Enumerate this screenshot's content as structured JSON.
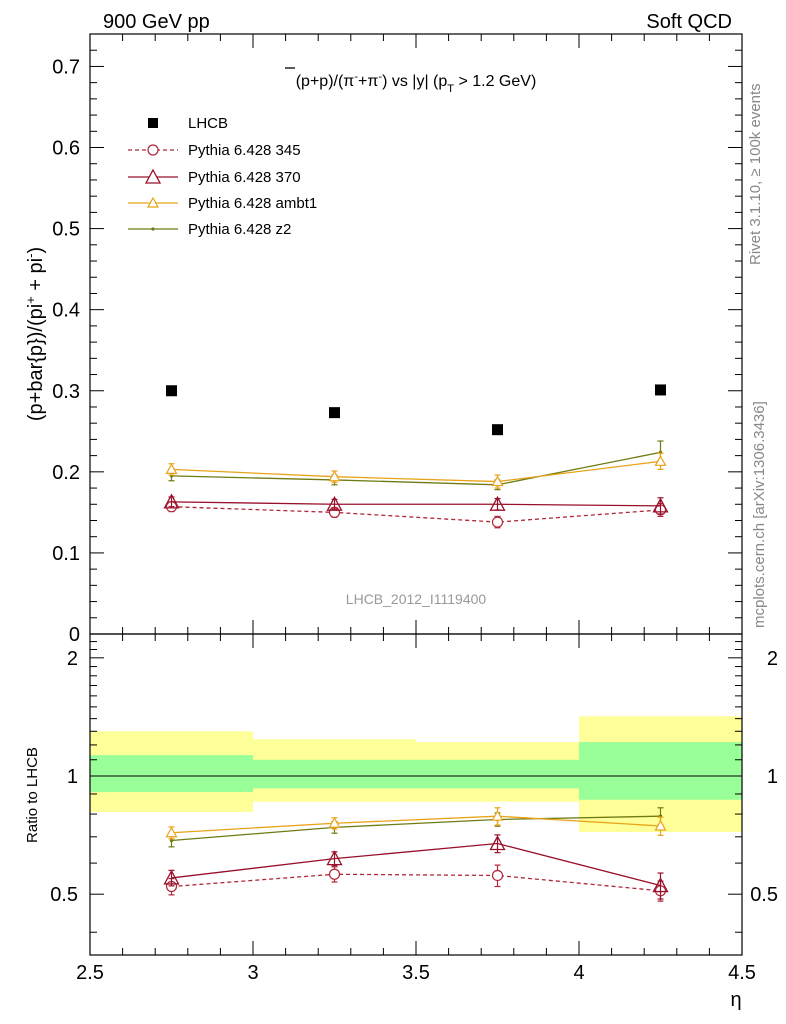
{
  "header": {
    "left": "900 GeV pp",
    "right": "Soft QCD"
  },
  "side": {
    "rivet": "Rivet 3.1.10, ≥ 100k events",
    "mcplots": "mcplots.cern.ch [arXiv:1306.3436]"
  },
  "colors": {
    "data": "#000000",
    "p345": "#b0283a",
    "p370": "#99102a",
    "ambt1": "#e8a318",
    "z2": "#6f7a12",
    "band_inner": "#99ff99",
    "band_outer": "#ffff99"
  },
  "chart_data": [
    {
      "type": "scatter",
      "title": "(p̅+p)/(π⁻+π⁺) vs |y| (p_T > 1.2 GeV)",
      "title_parts": {
        "main": "(p+p)/(π",
        "minus": "-",
        "plus_pi": "+π",
        "plus": "-",
        "vs": ") vs |y| (p",
        "sub": "T",
        "tail": " > 1.2 GeV)"
      },
      "ylabel": "(p+bar{p})/(pi⁺ + pi⁻)",
      "ylabel_parts": {
        "a": "(p+bar{p})/(pi",
        "sup1": "+",
        "b": " + pi",
        "sup2": "-",
        "c": ")"
      },
      "xlim": [
        2.5,
        4.5
      ],
      "ylim": [
        0,
        0.74
      ],
      "y_ticks": [
        0,
        0.1,
        0.2,
        0.3,
        0.4,
        0.5,
        0.6,
        0.7
      ],
      "y_tick_labels": [
        "0",
        "0.1",
        "0.2",
        "0.3",
        "0.4",
        "0.5",
        "0.6",
        "0.7"
      ],
      "watermark": "LHCB_2012_I1119400",
      "legend_position": "top-left",
      "x": [
        2.75,
        3.25,
        3.75,
        4.25
      ],
      "series": [
        {
          "name": "LHCB",
          "values": [
            0.3,
            0.273,
            0.252,
            0.301
          ],
          "errors": [
            0.005,
            0.005,
            0.005,
            0.005
          ],
          "marker": "square",
          "line": "none"
        },
        {
          "name": "Pythia 6.428 345",
          "values": [
            0.157,
            0.15,
            0.138,
            0.153
          ],
          "errors": [
            0.006,
            0.006,
            0.007,
            0.008
          ],
          "marker": "open-circle",
          "line": "dashed"
        },
        {
          "name": "Pythia 6.428 370",
          "values": [
            0.163,
            0.16,
            0.16,
            0.158
          ],
          "errors": [
            0.006,
            0.006,
            0.007,
            0.01
          ],
          "marker": "open-triangle",
          "line": "solid"
        },
        {
          "name": "Pythia 6.428 ambt1",
          "values": [
            0.203,
            0.194,
            0.188,
            0.213
          ],
          "errors": [
            0.007,
            0.007,
            0.008,
            0.01
          ],
          "marker": "small-open-triangle",
          "line": "solid"
        },
        {
          "name": "Pythia 6.428 z2",
          "values": [
            0.195,
            0.19,
            0.184,
            0.224
          ],
          "errors": [
            0.006,
            0.006,
            0.006,
            0.014
          ],
          "marker": "dot",
          "line": "solid"
        }
      ]
    },
    {
      "type": "scatter",
      "ylabel": "Ratio to LHCB",
      "xlabel": "η",
      "xlim": [
        2.5,
        4.5
      ],
      "ylim": [
        0.35,
        2.3
      ],
      "x_ticks": [
        2.5,
        3,
        3.5,
        4,
        4.5
      ],
      "x_tick_labels": [
        "2.5",
        "3",
        "3.5",
        "4",
        "4.5"
      ],
      "y_ticks": [
        0.5,
        1,
        2
      ],
      "y_tick_labels": [
        "0.5",
        "1",
        "2"
      ],
      "bins": [
        [
          2.5,
          3.0
        ],
        [
          3.0,
          3.5
        ],
        [
          3.5,
          4.0
        ],
        [
          4.0,
          4.5
        ]
      ],
      "band_inner": [
        [
          0.91,
          1.13
        ],
        [
          0.93,
          1.1
        ],
        [
          0.93,
          1.1
        ],
        [
          0.87,
          1.22
        ]
      ],
      "band_outer": [
        [
          0.81,
          1.3
        ],
        [
          0.86,
          1.24
        ],
        [
          0.86,
          1.22
        ],
        [
          0.72,
          1.42
        ]
      ],
      "x": [
        2.75,
        3.25,
        3.75,
        4.25
      ],
      "series": [
        {
          "name": "Pythia 6.428 345",
          "values": [
            0.523,
            0.562,
            0.558,
            0.51
          ],
          "errors": [
            0.025,
            0.025,
            0.035,
            0.03
          ]
        },
        {
          "name": "Pythia 6.428 370",
          "values": [
            0.55,
            0.616,
            0.673,
            0.526
          ],
          "errors": [
            0.025,
            0.025,
            0.035,
            0.04
          ]
        },
        {
          "name": "Pythia 6.428 ambt1",
          "values": [
            0.717,
            0.758,
            0.79,
            0.746
          ],
          "errors": [
            0.025,
            0.025,
            0.04,
            0.04
          ]
        },
        {
          "name": "Pythia 6.428 z2",
          "values": [
            0.685,
            0.74,
            0.775,
            0.79
          ],
          "errors": [
            0.025,
            0.025,
            0.03,
            0.04
          ]
        }
      ]
    }
  ]
}
